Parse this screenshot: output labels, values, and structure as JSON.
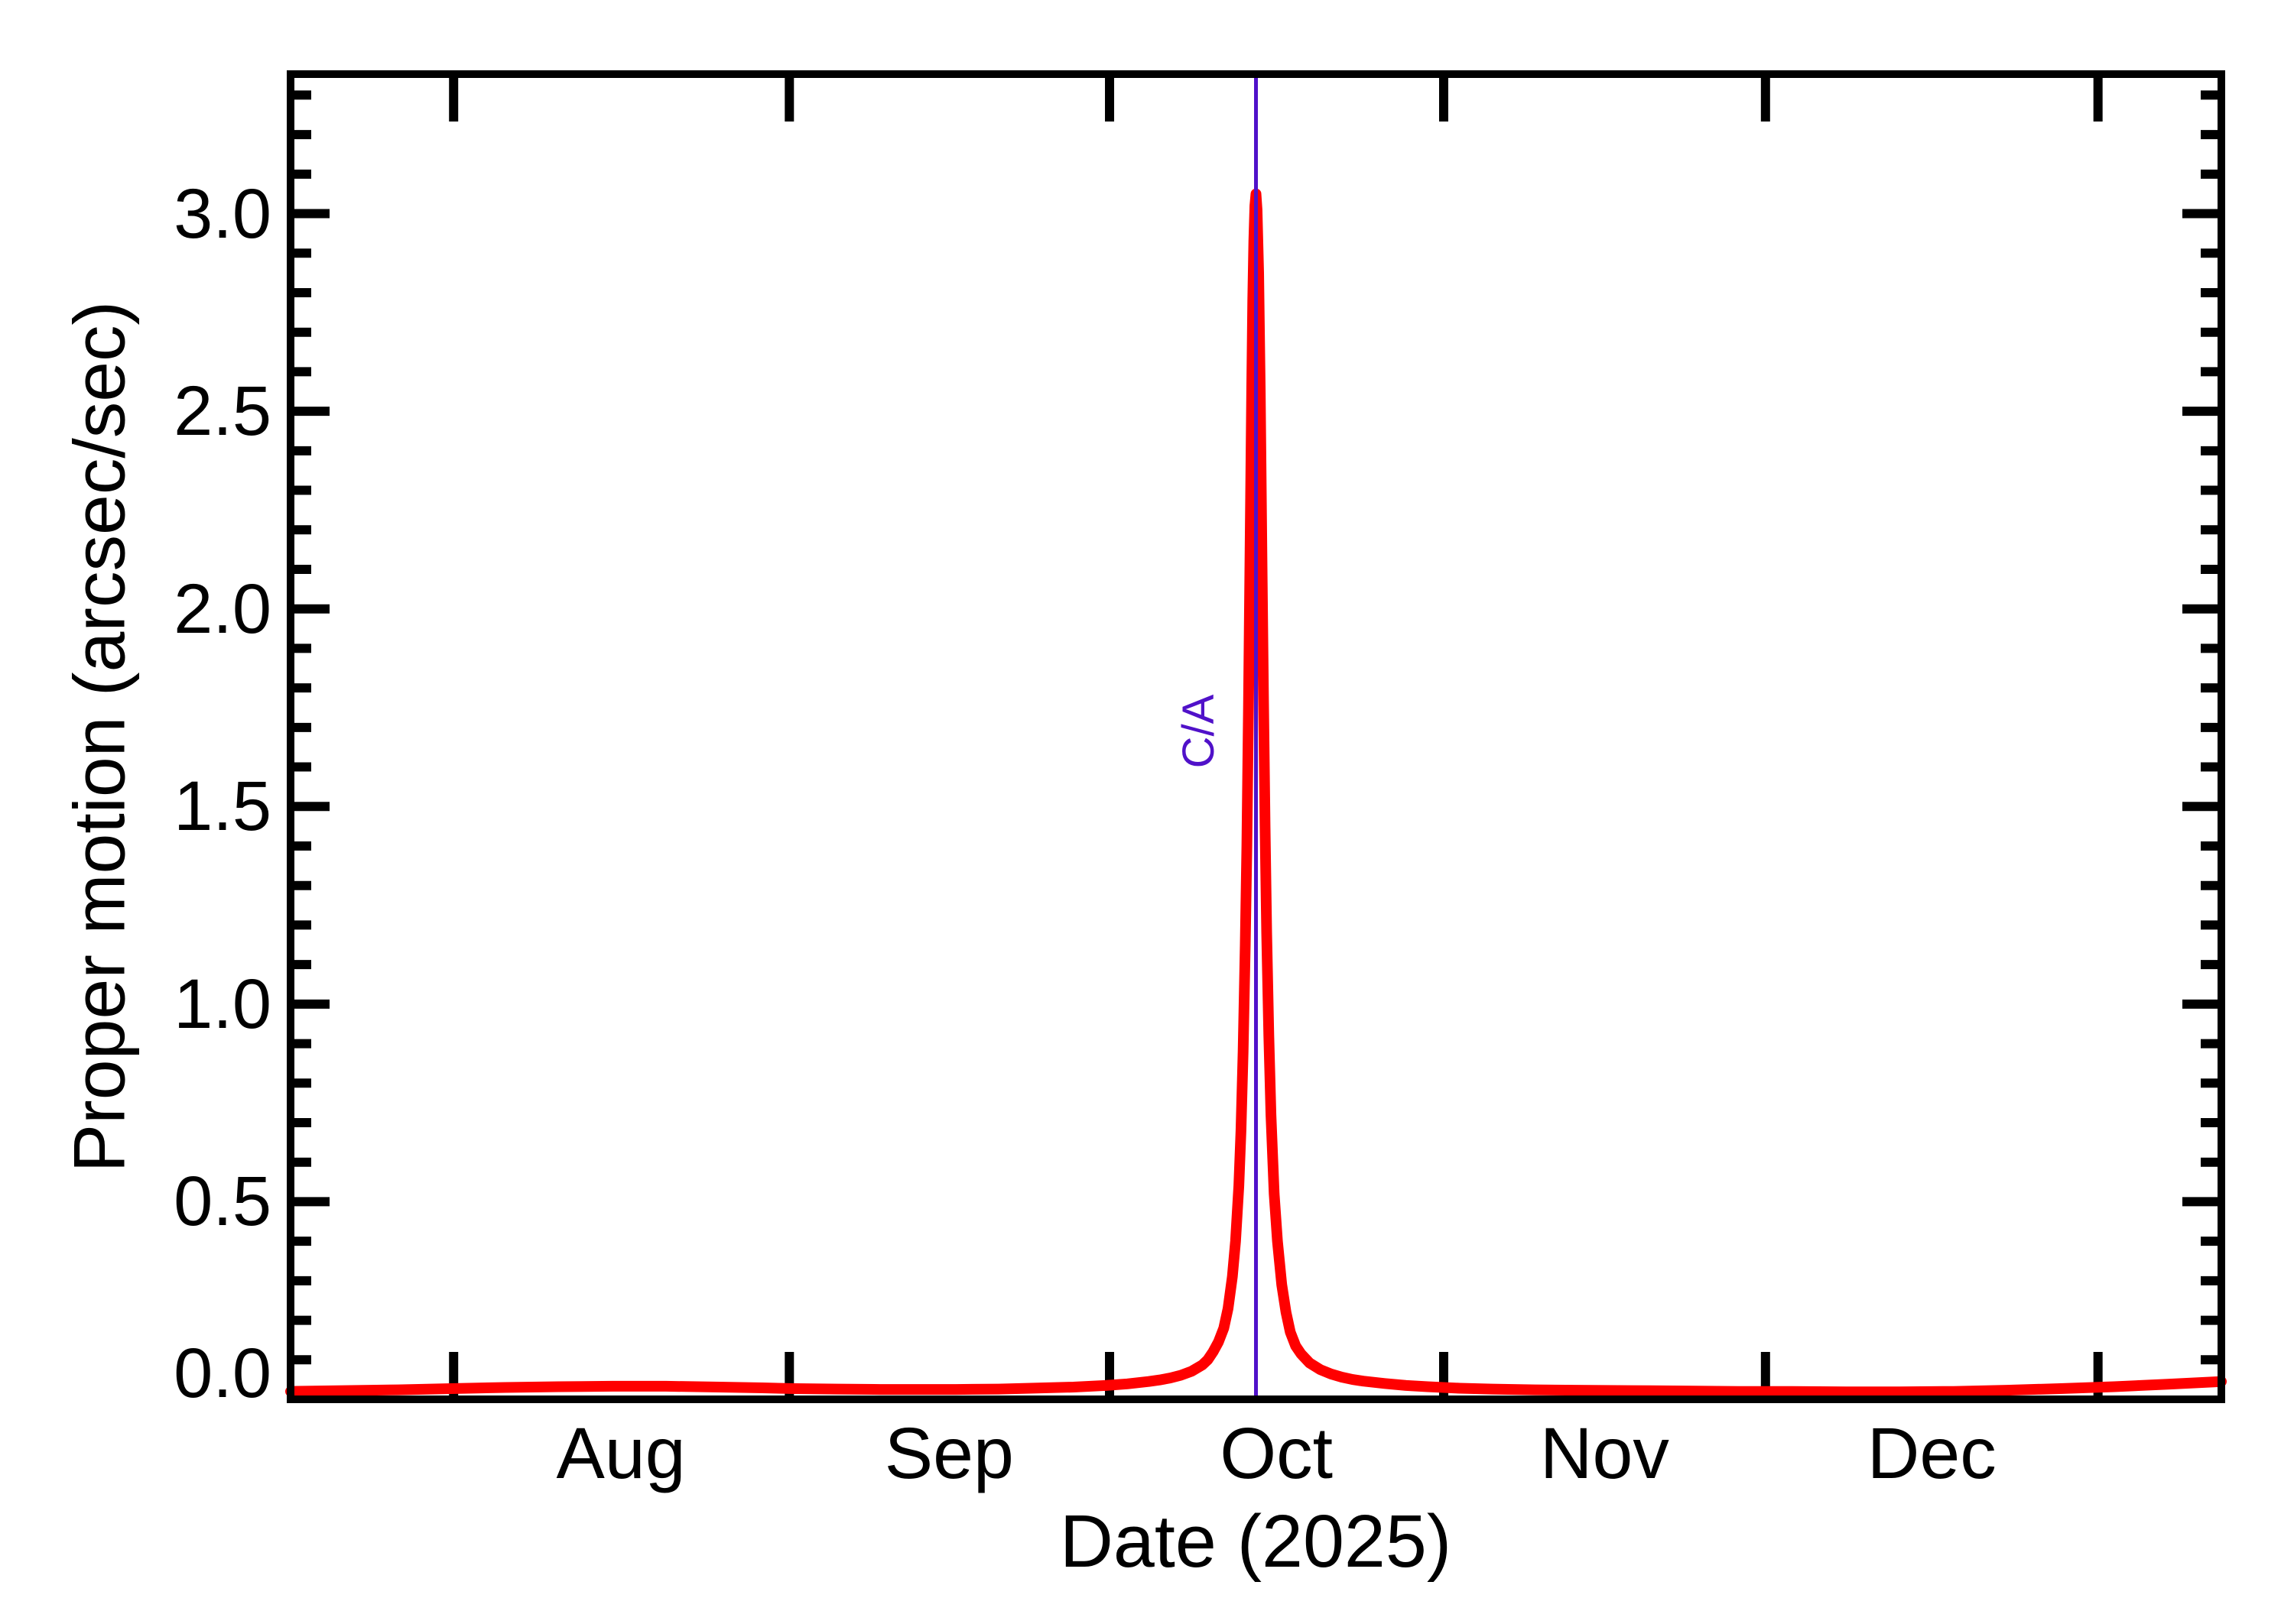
{
  "figure": {
    "x_axis_title": "Date (2025)",
    "y_axis_title": "Proper motion (arcsec/sec)",
    "ca_annotation": "C/A",
    "colors": {
      "curve": "#ff0000",
      "ca_line": "#5011c9",
      "ca_text": "#5011c9",
      "axis": "#000000",
      "background": "#ffffff",
      "text": "#000000"
    }
  },
  "chart_data": {
    "type": "line",
    "title": "",
    "xlabel": "Date (2025)",
    "ylabel": "Proper motion (arcsec/sec)",
    "legend": "none",
    "grid": "off",
    "x_unit": "days relative to close approach",
    "x_range_days": [
      -90,
      90
    ],
    "ylim": [
      0,
      3.353
    ],
    "y_major_tick_values": [
      0.0,
      0.5,
      1.0,
      1.5,
      2.0,
      2.5,
      3.0
    ],
    "y_tick_labels": [
      "0.0",
      "0.5",
      "1.0",
      "1.5",
      "2.0",
      "2.5",
      "3.0"
    ],
    "y_minor_tick_step": 0.1,
    "y_minor_tick_max": 3.3,
    "month_boundary_tick_days": [
      -74.8,
      -43.5,
      -13.65,
      17.5,
      47.5,
      78.5
    ],
    "month_labels": [
      {
        "label": "Aug",
        "day": -59.2
      },
      {
        "label": "Sep",
        "day": -28.6
      },
      {
        "label": "Oct",
        "day": 1.9
      },
      {
        "label": "Nov",
        "day": 32.5
      },
      {
        "label": "Dec",
        "day": 63.0
      }
    ],
    "annotation": {
      "label": "C/A",
      "day": 0,
      "value_at_label": 1.69
    },
    "peak": {
      "day": 0,
      "value": 3.05
    },
    "series": [
      {
        "name": "proper-motion",
        "points": [
          [
            -90,
            0.02
          ],
          [
            -85,
            0.022
          ],
          [
            -80,
            0.024
          ],
          [
            -75,
            0.027
          ],
          [
            -70,
            0.03
          ],
          [
            -65,
            0.032
          ],
          [
            -60,
            0.033
          ],
          [
            -55,
            0.033
          ],
          [
            -50,
            0.031
          ],
          [
            -46,
            0.029
          ],
          [
            -43,
            0.027
          ],
          [
            -39,
            0.026
          ],
          [
            -35,
            0.025
          ],
          [
            -31,
            0.025
          ],
          [
            -28,
            0.025
          ],
          [
            -24,
            0.026
          ],
          [
            -21,
            0.028
          ],
          [
            -17,
            0.031
          ],
          [
            -14,
            0.035
          ],
          [
            -12,
            0.039
          ],
          [
            -10,
            0.045
          ],
          [
            -9,
            0.049
          ],
          [
            -8,
            0.054
          ],
          [
            -7,
            0.061
          ],
          [
            -6,
            0.071
          ],
          [
            -5,
            0.087
          ],
          [
            -4.5,
            0.1
          ],
          [
            -4,
            0.12
          ],
          [
            -3.5,
            0.145
          ],
          [
            -3,
            0.18
          ],
          [
            -2.6,
            0.23
          ],
          [
            -2.2,
            0.31
          ],
          [
            -1.9,
            0.4
          ],
          [
            -1.6,
            0.54
          ],
          [
            -1.4,
            0.68
          ],
          [
            -1.2,
            0.88
          ],
          [
            -1.0,
            1.15
          ],
          [
            -0.85,
            1.4
          ],
          [
            -0.7,
            1.75
          ],
          [
            -0.55,
            2.15
          ],
          [
            -0.4,
            2.55
          ],
          [
            -0.3,
            2.78
          ],
          [
            -0.2,
            2.93
          ],
          [
            -0.1,
            3.02
          ],
          [
            0,
            3.05
          ],
          [
            0.1,
            3.01
          ],
          [
            0.25,
            2.85
          ],
          [
            0.4,
            2.55
          ],
          [
            0.55,
            2.15
          ],
          [
            0.7,
            1.78
          ],
          [
            0.85,
            1.45
          ],
          [
            1.0,
            1.18
          ],
          [
            1.2,
            0.92
          ],
          [
            1.4,
            0.72
          ],
          [
            1.7,
            0.52
          ],
          [
            2.0,
            0.4
          ],
          [
            2.4,
            0.29
          ],
          [
            2.8,
            0.22
          ],
          [
            3.2,
            0.17
          ],
          [
            3.7,
            0.135
          ],
          [
            4.2,
            0.115
          ],
          [
            5,
            0.092
          ],
          [
            6,
            0.075
          ],
          [
            7,
            0.064
          ],
          [
            8,
            0.056
          ],
          [
            9,
            0.05
          ],
          [
            10,
            0.046
          ],
          [
            12,
            0.04
          ],
          [
            14,
            0.035
          ],
          [
            16,
            0.032
          ],
          [
            19,
            0.028
          ],
          [
            22,
            0.026
          ],
          [
            26,
            0.024
          ],
          [
            30,
            0.023
          ],
          [
            35,
            0.022
          ],
          [
            40,
            0.021
          ],
          [
            45,
            0.02
          ],
          [
            50,
            0.02
          ],
          [
            55,
            0.019
          ],
          [
            60,
            0.019
          ],
          [
            65,
            0.02
          ],
          [
            70,
            0.023
          ],
          [
            75,
            0.027
          ],
          [
            80,
            0.032
          ],
          [
            85,
            0.038
          ],
          [
            90,
            0.045
          ]
        ]
      }
    ]
  }
}
